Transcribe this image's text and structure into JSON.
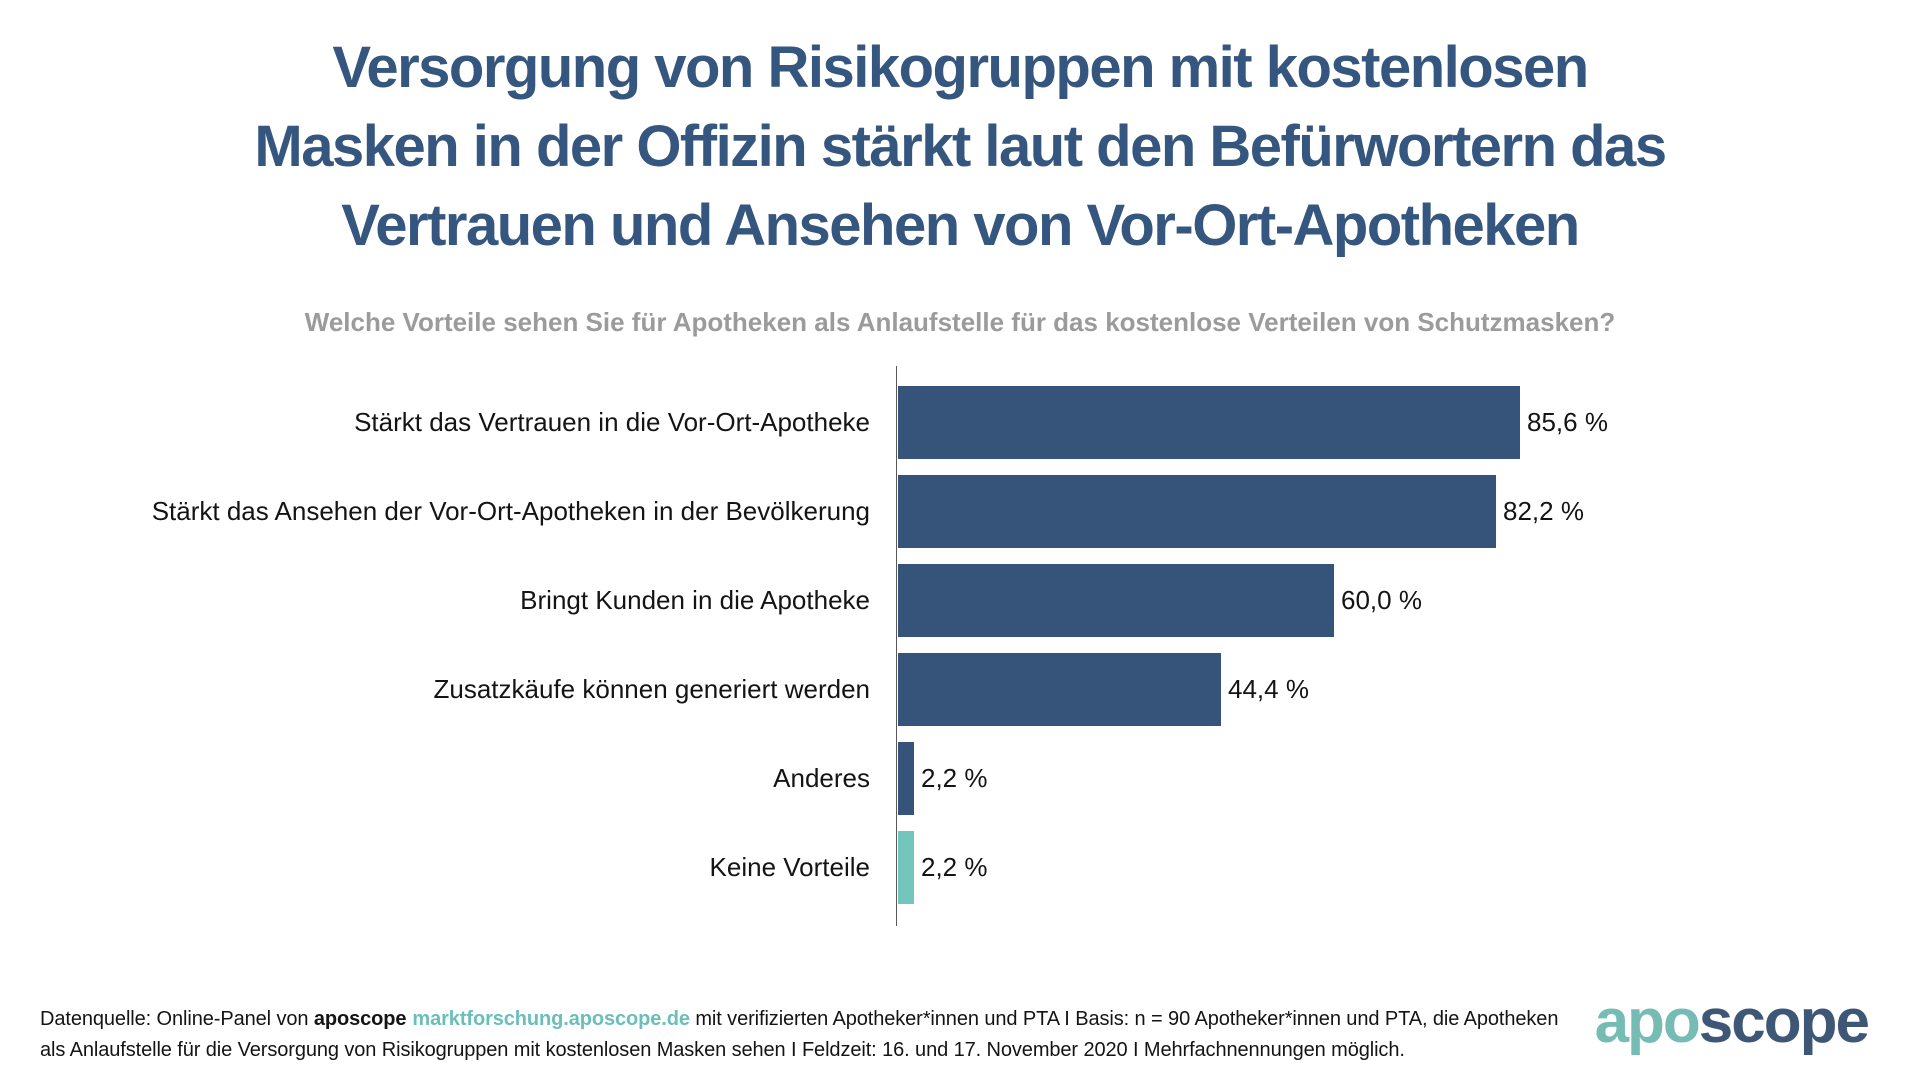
{
  "page": {
    "background": "#FFFFFF"
  },
  "header": {
    "title_line1": "Versorgung von Risikogruppen mit kostenlosen",
    "title_line2": "Masken in der Offizin stärkt laut den Befürwortern das",
    "title_line3": "Vertrauen und Ansehen von Vor-Ort-Apotheken",
    "title_color": "#35567E",
    "subtitle": "Welche Vorteile sehen Sie für Apotheken als Anlaufstelle für das kostenlose Verteilen von Schutzmasken?",
    "subtitle_color": "#9B9B9B"
  },
  "chart_data": {
    "type": "bar",
    "orientation": "horizontal",
    "title": "",
    "xlabel": "",
    "ylabel": "",
    "axis_max": 100,
    "grid": false,
    "legend": false,
    "categories": [
      "Stärkt das Vertrauen in die Vor-Ort-Apotheke",
      "Stärkt das Ansehen der Vor-Ort-Apotheken in der Bevölkerung",
      "Bringt Kunden in die Apotheke",
      "Zusatzkäufe können generiert werden",
      "Anderes",
      "Keine Vorteile"
    ],
    "values": [
      85.6,
      82.2,
      60.0,
      44.4,
      2.2,
      2.2
    ],
    "value_labels": [
      "85,6 %",
      "82,2 %",
      "60,0 %",
      "44,4 %",
      "2,2 %",
      "2,2 %"
    ],
    "bar_colors": [
      "#36547A",
      "#36547A",
      "#36547A",
      "#36547A",
      "#36547A",
      "#74C5BC"
    ],
    "default_bar_color": "#36547A",
    "highlight_bar_color": "#74C5BC",
    "axis_line_color": "#595959"
  },
  "footer": {
    "source_prefix": "Datenquelle: Online-Panel von ",
    "source_brand": "aposcope",
    "source_link": "marktforschung.aposcope.de",
    "line1_rest": " mit verifizierten Apotheker*innen und PTA I Basis: n = 90 Apotheker*innen und PTA, die Apotheken",
    "line2": "als Anlaufstelle für die Versorgung von Risikogruppen mit kostenlosen Masken sehen I Feldzeit: 16. und 17. November 2020 I Mehrfachnennungen möglich.",
    "link_color": "#6BBFB9"
  },
  "logo": {
    "part1": "apo",
    "part2": "scope",
    "part1_color": "#76BCB5",
    "part2_color": "#3E5777"
  }
}
